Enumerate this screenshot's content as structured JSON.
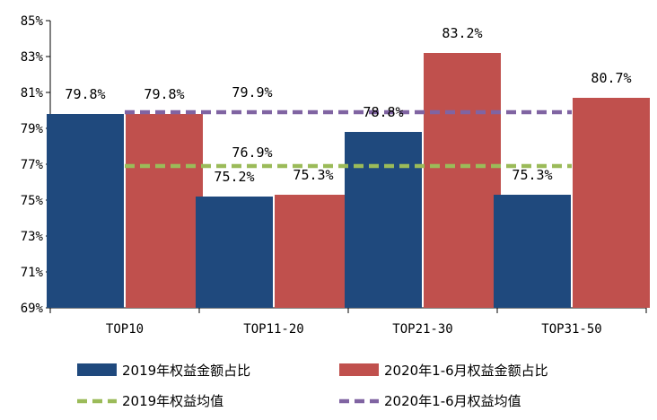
{
  "chart_data": {
    "type": "bar",
    "categories": [
      "TOP10",
      "TOP11-20",
      "TOP21-30",
      "TOP31-50"
    ],
    "series": [
      {
        "name": "2019年权益金额占比",
        "color": "#1f497d",
        "values": [
          79.8,
          75.2,
          78.8,
          75.3
        ],
        "labels": [
          "79.8%",
          "75.2%",
          "78.8%",
          "75.3%"
        ]
      },
      {
        "name": "2020年1-6月权益金额占比",
        "color": "#c0504d",
        "values": [
          79.8,
          75.3,
          83.2,
          80.7
        ],
        "labels": [
          "79.8%",
          "75.3%",
          "83.2%",
          "80.7%"
        ]
      }
    ],
    "reference_lines": [
      {
        "name": "2019年权益均值",
        "color": "#9bbb59",
        "value": 76.9,
        "label": "76.9%"
      },
      {
        "name": "2020年1-6月权益均值",
        "color": "#8064a2",
        "value": 79.9,
        "label": "79.9%"
      }
    ],
    "y_ticks": [
      "69%",
      "71%",
      "73%",
      "75%",
      "77%",
      "79%",
      "81%",
      "83%",
      "85%"
    ],
    "ylim": [
      69,
      85
    ],
    "legend_position": "bottom"
  }
}
